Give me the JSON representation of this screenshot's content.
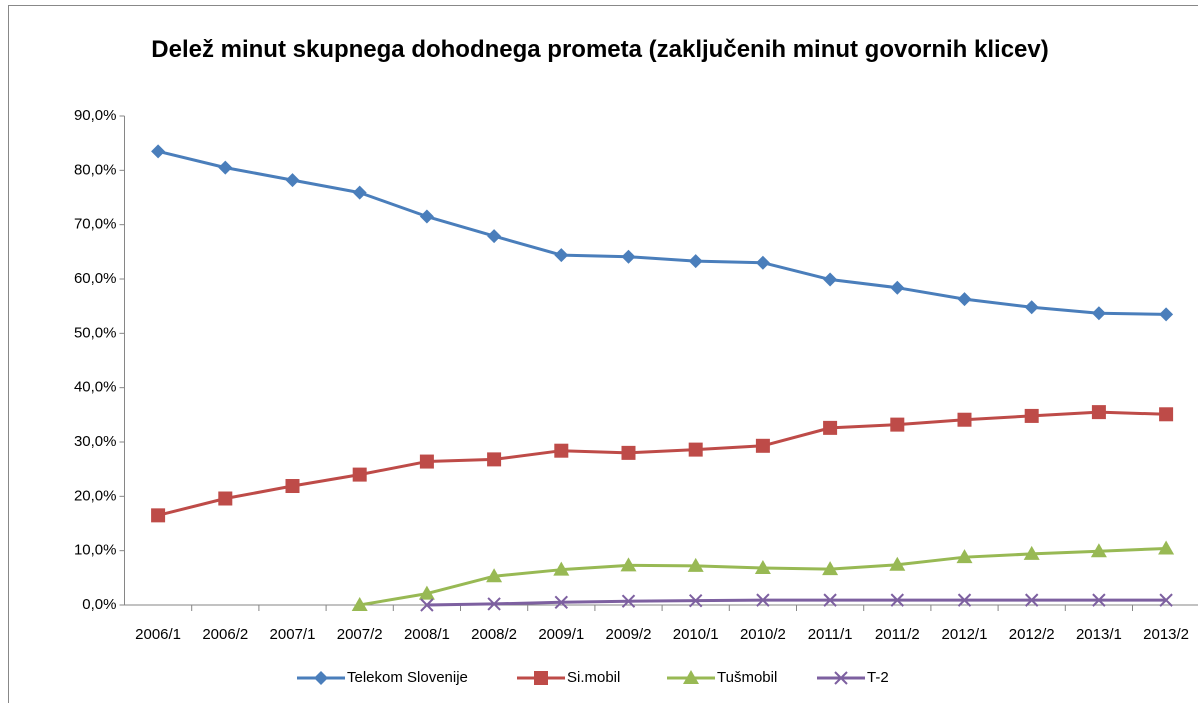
{
  "chart_data": {
    "type": "line",
    "title": "Delež minut skupnega dohodnega prometa (zaključenih minut govornih klicev)",
    "categories": [
      "2006/1",
      "2006/2",
      "2007/1",
      "2007/2",
      "2008/1",
      "2008/2",
      "2009/1",
      "2009/2",
      "2010/1",
      "2010/2",
      "2011/1",
      "2011/2",
      "2012/1",
      "2012/2",
      "2013/1",
      "2013/2"
    ],
    "series": [
      {
        "name": "Telekom Slovenije",
        "color": "#4a7ebb",
        "marker": "diamond",
        "values": [
          83.5,
          80.5,
          78.2,
          75.9,
          71.5,
          67.9,
          64.4,
          64.1,
          63.3,
          63.0,
          59.9,
          58.4,
          56.3,
          54.8,
          53.7,
          53.5
        ]
      },
      {
        "name": "Si.mobil",
        "color": "#be4b48",
        "marker": "square",
        "values": [
          16.5,
          19.6,
          21.9,
          24.0,
          26.4,
          26.8,
          28.4,
          28.0,
          28.6,
          29.3,
          32.6,
          33.2,
          34.1,
          34.8,
          35.5,
          35.1
        ]
      },
      {
        "name": "Tušmobil",
        "color": "#98b954",
        "marker": "triangle",
        "values": [
          null,
          null,
          null,
          0.0,
          2.1,
          5.3,
          6.5,
          7.3,
          7.2,
          6.8,
          6.6,
          7.4,
          8.8,
          9.4,
          9.9,
          10.4
        ]
      },
      {
        "name": "T-2",
        "color": "#7d60a0",
        "marker": "x",
        "values": [
          null,
          null,
          null,
          null,
          0.0,
          0.2,
          0.5,
          0.7,
          0.8,
          0.9,
          0.9,
          0.9,
          0.9,
          0.9,
          0.9,
          0.9
        ]
      }
    ],
    "ylim": [
      0,
      90
    ],
    "yticks": [
      {
        "value": 0,
        "label": "0,0%"
      },
      {
        "value": 10,
        "label": "10,0%"
      },
      {
        "value": 20,
        "label": "20,0%"
      },
      {
        "value": 30,
        "label": "30,0%"
      },
      {
        "value": 40,
        "label": "40,0%"
      },
      {
        "value": 50,
        "label": "50,0%"
      },
      {
        "value": 60,
        "label": "60,0%"
      },
      {
        "value": 70,
        "label": "70,0%"
      },
      {
        "value": 80,
        "label": "80,0%"
      },
      {
        "value": 90,
        "label": "90,0%"
      }
    ],
    "grid": false,
    "legend": "bottom"
  }
}
